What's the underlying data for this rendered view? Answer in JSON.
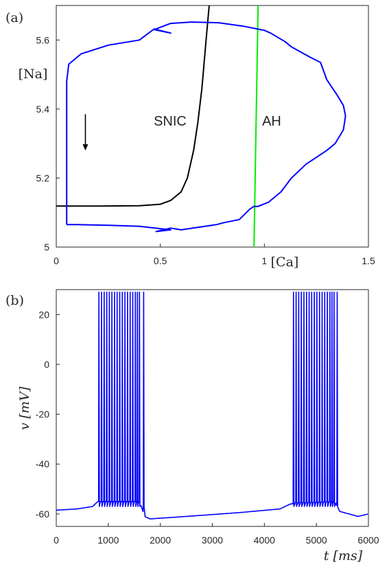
{
  "chart_data": [
    {
      "type": "line",
      "panel_label": "(a)",
      "xlabel": "[Ca]",
      "ylabel": "[Na]",
      "xlim": [
        0,
        1.5
      ],
      "ylim": [
        5.0,
        5.7
      ],
      "xticks": [
        0,
        0.5,
        1,
        1.5
      ],
      "xtick_labels": [
        "0",
        "0.5",
        "1",
        "1.5"
      ],
      "yticks": [
        5,
        5.2,
        5.4,
        5.6
      ],
      "ytick_labels": [
        "5",
        "5.2",
        "5.4",
        "5.6"
      ],
      "grid": false,
      "annotations": [
        "SNIC",
        "AH"
      ],
      "arrow": {
        "x": 0.14,
        "y_from": 5.385,
        "y_to": 5.28
      },
      "series": [
        {
          "color": "#000000",
          "x": [
            0.0,
            0.2,
            0.4,
            0.5,
            0.55,
            0.6,
            0.63,
            0.66,
            0.68,
            0.7,
            0.72,
            0.735
          ],
          "y": [
            5.119,
            5.119,
            5.12,
            5.124,
            5.135,
            5.16,
            5.2,
            5.28,
            5.36,
            5.46,
            5.6,
            5.7
          ]
        },
        {
          "color": "#00ee00",
          "x": [
            0.95,
            0.97
          ],
          "y": [
            5.0,
            5.7
          ]
        },
        {
          "color": "#0000ff",
          "x": [
            0.05,
            0.05,
            0.06,
            0.12,
            0.25,
            0.4,
            0.47,
            0.55,
            0.47,
            0.55,
            0.65,
            0.78,
            0.9,
            1.0,
            1.03,
            1.1,
            1.13,
            1.16,
            1.22,
            1.27,
            1.3,
            1.35,
            1.38,
            1.39,
            1.38,
            1.34,
            1.3,
            1.2,
            1.13,
            1.08,
            1.02,
            0.97,
            0.95,
            0.93,
            0.88,
            0.8,
            0.77,
            0.6,
            0.55,
            0.48,
            0.55,
            0.4,
            0.25,
            0.1,
            0.05
          ],
          "y": [
            5.065,
            5.48,
            5.53,
            5.56,
            5.585,
            5.6,
            5.632,
            5.62,
            5.63,
            5.648,
            5.652,
            5.65,
            5.64,
            5.628,
            5.62,
            5.595,
            5.58,
            5.57,
            5.55,
            5.535,
            5.485,
            5.44,
            5.41,
            5.38,
            5.34,
            5.3,
            5.28,
            5.24,
            5.2,
            5.16,
            5.13,
            5.118,
            5.118,
            5.11,
            5.08,
            5.07,
            5.065,
            5.05,
            5.055,
            5.045,
            5.05,
            5.06,
            5.063,
            5.065,
            5.065
          ]
        }
      ]
    },
    {
      "type": "line",
      "panel_label": "(b)",
      "xlabel": "t [ms]",
      "ylabel": "v [mV]",
      "xlim": [
        0,
        6000
      ],
      "ylim": [
        -65,
        30
      ],
      "xticks": [
        0,
        1000,
        2000,
        3000,
        4000,
        5000,
        6000
      ],
      "xtick_labels": [
        "0",
        "1000",
        "2000",
        "3000",
        "4000",
        "5000",
        "6000"
      ],
      "yticks": [
        -60,
        -40,
        -20,
        0,
        20
      ],
      "ytick_labels": [
        "-60",
        "-40",
        "-20",
        "0",
        "20"
      ],
      "grid": false,
      "series": [
        {
          "color": "#0000ff",
          "baseline_x": [
            0,
            400,
            700,
            800,
            1600,
            1700,
            1800,
            2500,
            3500,
            4300,
            4500,
            5350,
            5450,
            5800,
            6000
          ],
          "baseline_y": [
            -58.5,
            -58,
            -57,
            -55,
            -55,
            -61,
            -62,
            -61,
            -59.5,
            -58,
            -56,
            -55,
            -59,
            -61,
            -60
          ],
          "burst1": [
            820,
            870,
            920,
            970,
            1020,
            1070,
            1120,
            1170,
            1220,
            1270,
            1320,
            1370,
            1420,
            1470,
            1520,
            1560,
            1600,
            1680
          ],
          "burst2": [
            4560,
            4610,
            4660,
            4710,
            4760,
            4810,
            4860,
            4910,
            4960,
            5010,
            5060,
            5110,
            5160,
            5210,
            5260,
            5300,
            5340,
            5400
          ],
          "spike_peak": 29,
          "spike_trough": -57
        }
      ]
    }
  ]
}
